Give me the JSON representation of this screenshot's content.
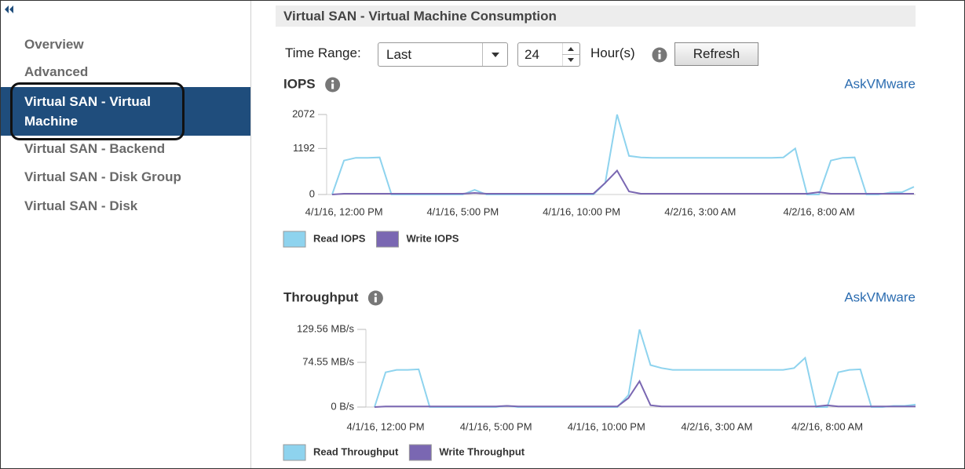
{
  "sidebar": {
    "items": [
      "Overview",
      "Advanced",
      "Virtual SAN - Virtual Machine Consumption",
      "Virtual SAN - Backend",
      "Virtual SAN - Disk Group",
      "Virtual SAN - Disk"
    ],
    "selected": 2
  },
  "header": {
    "title": "Virtual SAN - Virtual Machine Consumption"
  },
  "controls": {
    "time_range_label": "Time Range:",
    "range_option": "Last",
    "hours": 24,
    "hours_unit": "Hour(s)",
    "refresh": "Refresh"
  },
  "chart_data": [
    {
      "type": "line",
      "title": "IOPS",
      "link": "AskVMware",
      "categories": [
        null,
        "4/1/16, 12:00 PM",
        null,
        null,
        null,
        null,
        null,
        null,
        null,
        null,
        null,
        "4/1/16, 5:00 PM",
        null,
        null,
        null,
        null,
        null,
        null,
        null,
        null,
        null,
        "4/1/16, 10:00 PM",
        null,
        null,
        null,
        null,
        null,
        null,
        null,
        null,
        null,
        "4/2/16, 3:00 AM",
        null,
        null,
        null,
        null,
        null,
        null,
        null,
        null,
        null,
        "4/2/16, 8:00 AM",
        null,
        null,
        null,
        null,
        null,
        null,
        null,
        null
      ],
      "ylim": [
        0,
        2072
      ],
      "yticks": [
        0,
        1192,
        2072
      ],
      "series": [
        {
          "name": "Read IOPS",
          "color": "#8ed3ee",
          "values": [
            0,
            880,
            950,
            950,
            960,
            0,
            0,
            0,
            0,
            0,
            0,
            0,
            120,
            0,
            0,
            0,
            0,
            0,
            0,
            0,
            0,
            0,
            0,
            300,
            2072,
            1000,
            960,
            950,
            950,
            950,
            950,
            950,
            950,
            950,
            950,
            950,
            950,
            950,
            960,
            1192,
            0,
            0,
            880,
            950,
            960,
            0,
            0,
            50,
            60,
            200
          ]
        },
        {
          "name": "Write IOPS",
          "color": "#7a67b2",
          "values": [
            0,
            20,
            20,
            20,
            20,
            20,
            20,
            20,
            20,
            20,
            20,
            20,
            40,
            20,
            20,
            20,
            20,
            20,
            20,
            20,
            20,
            20,
            20,
            300,
            620,
            80,
            20,
            20,
            20,
            20,
            20,
            20,
            20,
            20,
            20,
            20,
            20,
            20,
            20,
            20,
            20,
            60,
            20,
            20,
            20,
            20,
            20,
            20,
            20,
            20
          ]
        }
      ]
    },
    {
      "type": "line",
      "title": "Throughput",
      "link": "AskVMware",
      "categories": [
        null,
        "4/1/16, 12:00 PM",
        null,
        null,
        null,
        null,
        null,
        null,
        null,
        null,
        null,
        "4/1/16, 5:00 PM",
        null,
        null,
        null,
        null,
        null,
        null,
        null,
        null,
        null,
        "4/1/16, 10:00 PM",
        null,
        null,
        null,
        null,
        null,
        null,
        null,
        null,
        null,
        "4/2/16, 3:00 AM",
        null,
        null,
        null,
        null,
        null,
        null,
        null,
        null,
        null,
        "4/2/16, 8:00 AM",
        null,
        null,
        null,
        null,
        null,
        null,
        null,
        null
      ],
      "ylim": [
        0,
        129.56
      ],
      "yticks": [
        {
          "value": 0,
          "label": "0 B/s"
        },
        {
          "value": 74.55,
          "label": "74.55 MB/s"
        },
        {
          "value": 129.56,
          "label": "129.56 MB/s"
        }
      ],
      "series": [
        {
          "name": "Read Throughput",
          "color": "#8ed3ee",
          "values": [
            0,
            58,
            62,
            62,
            63,
            0,
            0,
            0,
            0,
            0,
            0,
            0,
            2,
            0,
            0,
            0,
            0,
            0,
            0,
            0,
            0,
            0,
            0,
            20,
            129.56,
            70,
            65,
            62,
            62,
            62,
            62,
            62,
            62,
            62,
            62,
            62,
            62,
            62,
            65,
            82,
            0,
            0,
            58,
            62,
            63,
            0,
            0,
            2,
            2,
            4
          ]
        },
        {
          "name": "Write Throughput",
          "color": "#7a67b2",
          "values": [
            0,
            1,
            1,
            1,
            1,
            1,
            1,
            1,
            1,
            1,
            1,
            1,
            2,
            1,
            1,
            1,
            1,
            1,
            1,
            1,
            1,
            1,
            1,
            15,
            43,
            3,
            1,
            1,
            1,
            1,
            1,
            1,
            1,
            1,
            1,
            1,
            1,
            1,
            1,
            1,
            1,
            3,
            1,
            1,
            1,
            1,
            1,
            1,
            1,
            1
          ]
        }
      ]
    }
  ]
}
